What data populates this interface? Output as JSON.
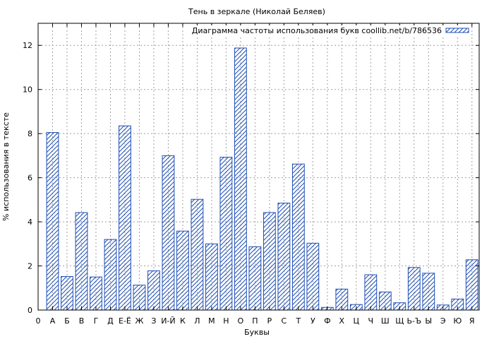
{
  "chart_data": {
    "type": "bar",
    "title": "Тень в зеркале (Николай Беляев)",
    "xlabel": "Буквы",
    "ylabel": "% использования в тексте",
    "ylim": [
      0,
      13
    ],
    "yticks": [
      0,
      2,
      4,
      6,
      8,
      10,
      12
    ],
    "grid": true,
    "legend_position": "top-right",
    "x_start_label": "0",
    "categories": [
      "А",
      "Б",
      "В",
      "Г",
      "Д",
      "Е-Ё",
      "Ж",
      "З",
      "И-Й",
      "К",
      "Л",
      "М",
      "Н",
      "О",
      "П",
      "Р",
      "С",
      "Т",
      "У",
      "Ф",
      "Х",
      "Ц",
      "Ч",
      "Ш",
      "Щ",
      "Ь-Ъ",
      "Ы",
      "Э",
      "Ю",
      "Я"
    ],
    "series": [
      {
        "name": "Диаграмма частоты использования букв coollib.net/b/786536",
        "values": [
          8.05,
          1.52,
          4.42,
          1.5,
          3.2,
          8.35,
          1.13,
          1.78,
          7.0,
          3.58,
          5.02,
          3.0,
          6.93,
          11.88,
          2.87,
          4.42,
          4.85,
          6.62,
          3.03,
          0.12,
          0.95,
          0.25,
          1.6,
          0.82,
          0.33,
          1.93,
          1.67,
          0.23,
          0.5,
          2.28
        ]
      }
    ],
    "colors": {
      "bar_stroke": "#1f4fb4",
      "grid": "#a0a0a0"
    }
  }
}
